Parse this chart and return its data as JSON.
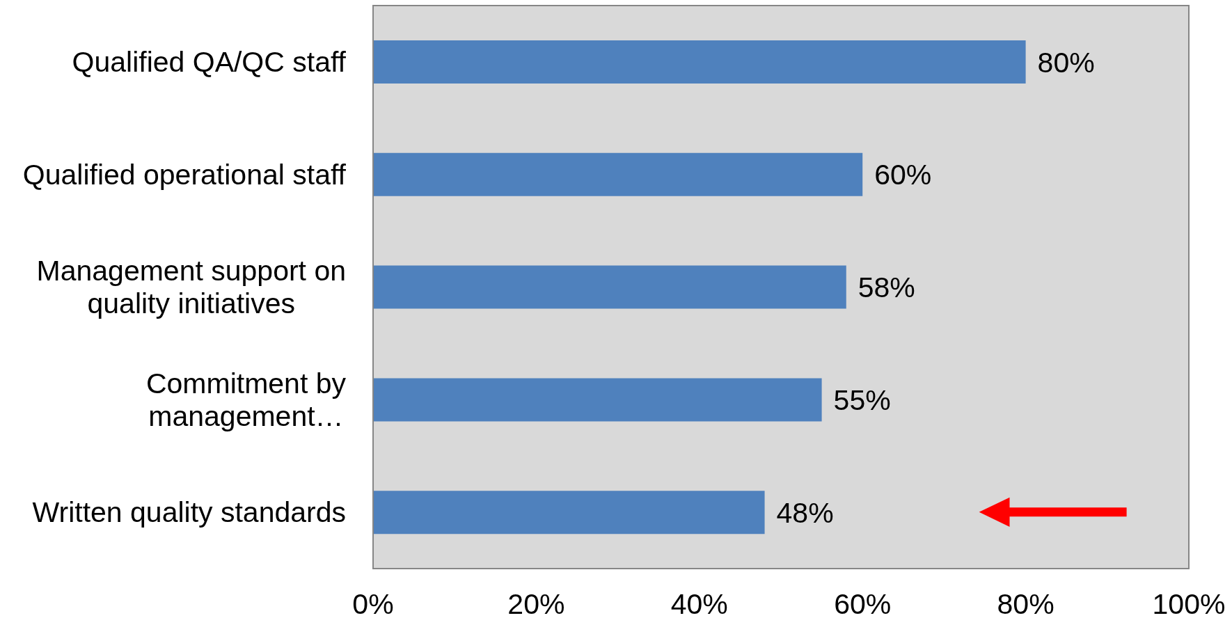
{
  "chart_data": {
    "type": "bar",
    "orientation": "horizontal",
    "categories": [
      "Qualified QA/QC staff",
      "Qualified operational staff",
      "Management support on quality initiatives",
      "Commitment by management…",
      "Written quality standards"
    ],
    "values": [
      80,
      60,
      58,
      55,
      48
    ],
    "color": "#4f81bd",
    "value_labels": [
      "80%",
      "60%",
      "58%",
      "55%",
      "48%"
    ],
    "xlim": [
      0,
      100
    ],
    "xticks": [
      {
        "value": 0,
        "label": "0%"
      },
      {
        "value": 20,
        "label": "20%"
      },
      {
        "value": 40,
        "label": "40%"
      },
      {
        "value": 60,
        "label": "60%"
      },
      {
        "value": 80,
        "label": "80%"
      },
      {
        "value": 100,
        "label": "100%"
      }
    ]
  }
}
